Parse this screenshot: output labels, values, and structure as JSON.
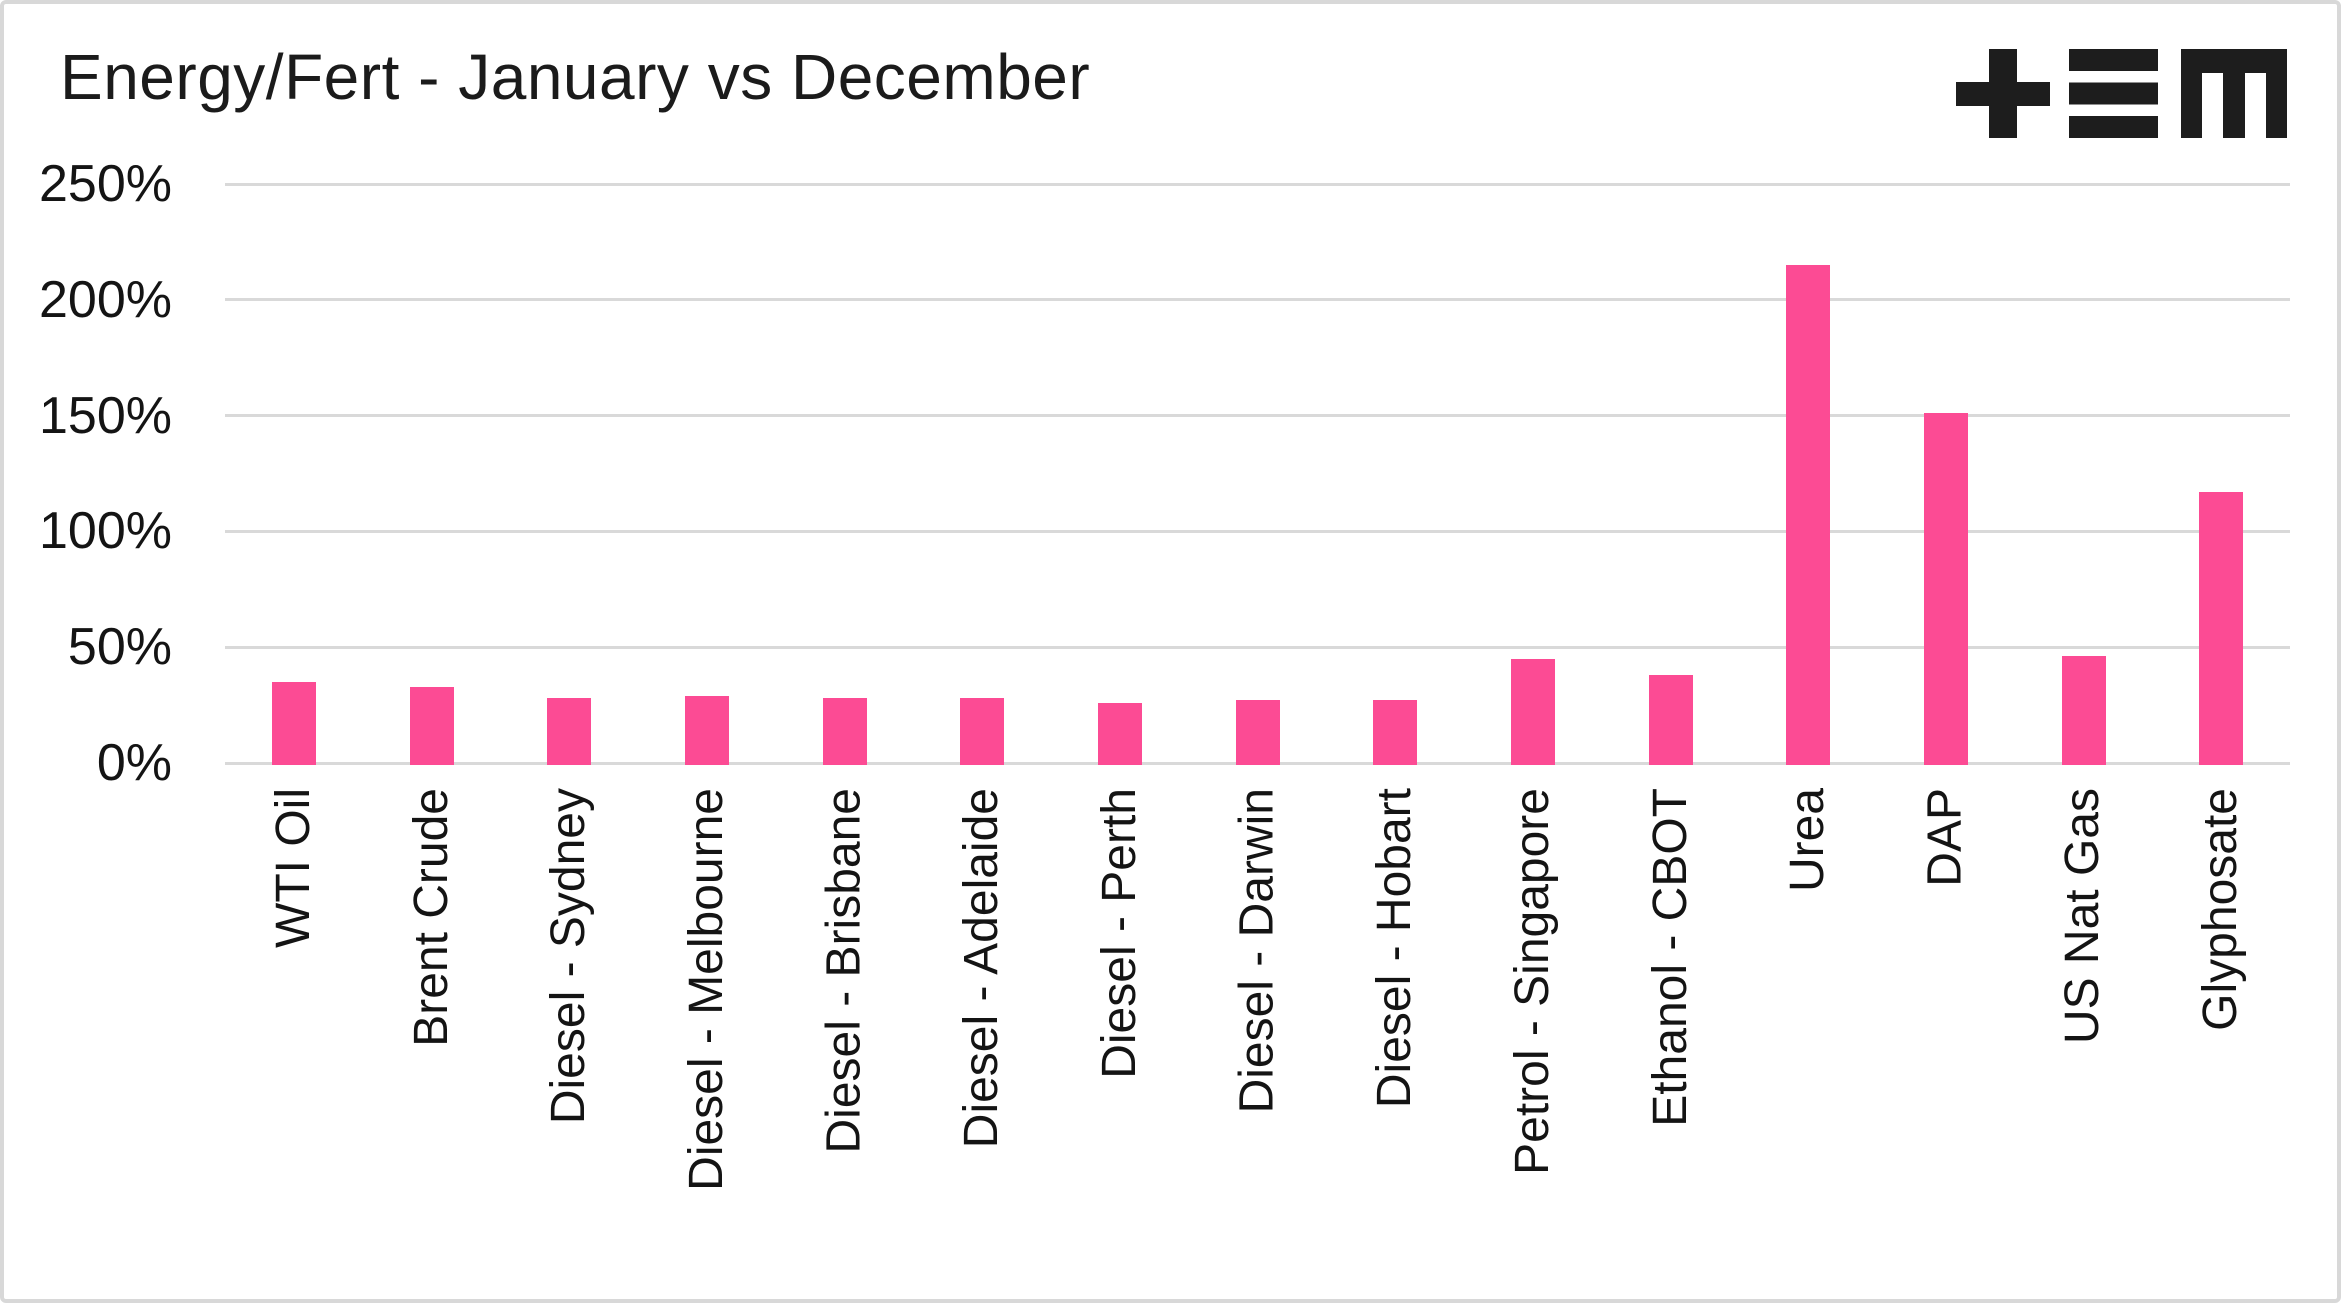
{
  "header": {
    "title": "Energy/Fert - January vs December",
    "logo_name": "TEM plus-equals-M logo",
    "logo_color": "#1d1d1d"
  },
  "chart_data": {
    "type": "bar",
    "title": "Energy/Fert - January vs December",
    "categories": [
      "WTI Oil",
      "Brent Crude",
      "Diesel - Sydney",
      "Diesel - Melbourne",
      "Diesel - Brisbane",
      "Diesel - Adelaide",
      "Diesel - Perth",
      "Diesel - Darwin",
      "Diesel - Hobart",
      "Petrol - Singapore",
      "Ethanol - CBOT",
      "Urea",
      "DAP",
      "US Nat Gas",
      "Glyphosate"
    ],
    "values": [
      35,
      33,
      28,
      29,
      28,
      28,
      26,
      27,
      27,
      45,
      38,
      215,
      151,
      46,
      117
    ],
    "unit": "%",
    "xlabel": "",
    "ylabel": "",
    "ylim": [
      0,
      250
    ],
    "y_ticks": [
      {
        "value": 250,
        "label": "250%"
      },
      {
        "value": 200,
        "label": "200%"
      },
      {
        "value": 150,
        "label": "150%"
      },
      {
        "value": 100,
        "label": "100%"
      },
      {
        "value": 50,
        "label": "50%"
      },
      {
        "value": 0,
        "label": "0%"
      }
    ],
    "grid": true,
    "legend": false,
    "x_label_rotation": -90,
    "bar_color": "#fc4b94",
    "gridline_color": "#d9d9d9",
    "text_color": "#141414"
  }
}
